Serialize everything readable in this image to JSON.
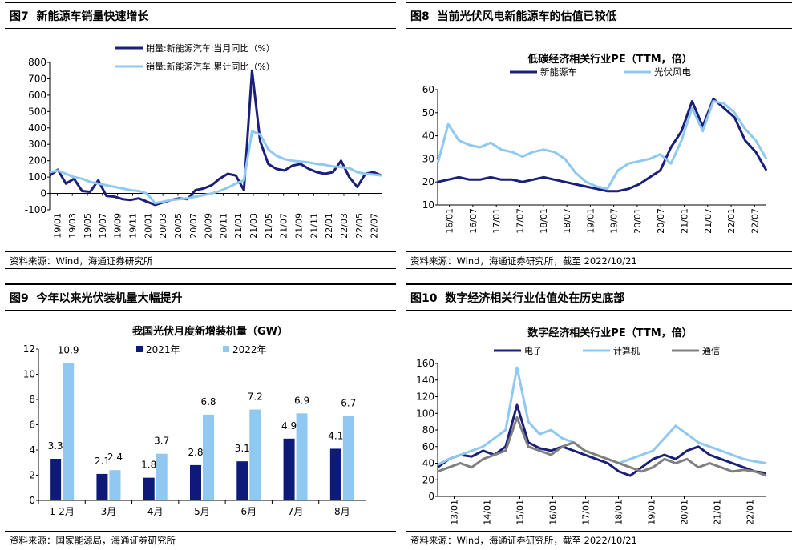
{
  "panels": [
    {
      "id": "p7",
      "fig_label": "图7",
      "title": "新能源车销量快速增长",
      "source": "资料来源：Wind，海通证券研究所"
    },
    {
      "id": "p8",
      "fig_label": "图8",
      "title": "当前光伏风电新能源车的估值已较低",
      "source": "资料来源：Wind，海通证券研究所，截至 2022/10/21"
    },
    {
      "id": "p9",
      "fig_label": "图9",
      "title": "今年以来光伏装机量大幅提升",
      "source": "资料来源：国家能源局，海通证券研究所"
    },
    {
      "id": "p10",
      "fig_label": "图10",
      "title": "数字经济相关行业估值处在历史底部",
      "source": "资料来源：Wind，海通证券研究所，截至 2022/10/21"
    }
  ],
  "chart_data": [
    {
      "id": "p7",
      "type": "line",
      "title": "",
      "ylim": [
        -100,
        800
      ],
      "yticks": [
        -100,
        0,
        100,
        200,
        300,
        400,
        500,
        600,
        700,
        800
      ],
      "x_tick_labels": [
        "19/01",
        "19/03",
        "19/05",
        "19/07",
        "19/09",
        "19/11",
        "20/01",
        "20/03",
        "20/05",
        "20/07",
        "20/09",
        "20/11",
        "21/01",
        "21/03",
        "21/05",
        "21/07",
        "21/09",
        "21/11",
        "22/01",
        "22/03",
        "22/05",
        "22/07"
      ],
      "series": [
        {
          "name": "销量:新能源汽车:当月同比（%）",
          "color": "#1a1f7a",
          "values": [
            110,
            145,
            60,
            90,
            15,
            10,
            80,
            -15,
            -20,
            -35,
            -40,
            -30,
            -50,
            -70,
            -55,
            -40,
            -30,
            -35,
            20,
            30,
            50,
            90,
            120,
            110,
            20,
            750,
            320,
            180,
            150,
            140,
            170,
            180,
            150,
            130,
            120,
            130,
            200,
            100,
            40,
            120,
            130,
            110
          ]
        },
        {
          "name": "销量:新能源汽车:累计同比（%）",
          "color": "#8fc8f0",
          "values": [
            130,
            140,
            120,
            100,
            90,
            70,
            60,
            50,
            40,
            30,
            20,
            15,
            0,
            -60,
            -50,
            -40,
            -35,
            -30,
            -20,
            -10,
            0,
            15,
            35,
            60,
            80,
            380,
            360,
            270,
            230,
            210,
            200,
            195,
            190,
            180,
            175,
            165,
            160,
            155,
            130,
            120,
            115,
            110
          ]
        }
      ]
    },
    {
      "id": "p8",
      "type": "line",
      "title": "低碳经济相关行业PE（TTM，倍）",
      "ylim": [
        10,
        60
      ],
      "yticks": [
        10,
        20,
        30,
        40,
        50,
        60
      ],
      "x_tick_labels": [
        "16/01",
        "16/07",
        "17/01",
        "17/07",
        "18/01",
        "18/07",
        "19/01",
        "19/07",
        "20/01",
        "20/07",
        "21/01",
        "21/07",
        "22/01",
        "22/07"
      ],
      "series": [
        {
          "name": "新能源车",
          "color": "#1a1f7a",
          "values": [
            20,
            21,
            22,
            21,
            21,
            22,
            21,
            21,
            20,
            21,
            22,
            21,
            20,
            19,
            18,
            17,
            16,
            16,
            17,
            19,
            22,
            25,
            35,
            42,
            55,
            44,
            56,
            52,
            48,
            38,
            33,
            25
          ]
        },
        {
          "name": "光伏风电",
          "color": "#8fc8f0",
          "values": [
            28,
            45,
            38,
            36,
            35,
            37,
            34,
            33,
            31,
            33,
            34,
            33,
            30,
            24,
            20,
            18,
            17,
            25,
            28,
            29,
            30,
            32,
            28,
            38,
            52,
            42,
            55,
            54,
            50,
            43,
            38,
            30
          ]
        }
      ]
    },
    {
      "id": "p9",
      "type": "bar",
      "title": "我国光伏月度新增装机量（GW）",
      "ylim": [
        0,
        12
      ],
      "yticks": [
        0,
        2,
        4,
        6,
        8,
        10,
        12
      ],
      "categories": [
        "1-2月",
        "3月",
        "4月",
        "5月",
        "6月",
        "7月",
        "8月"
      ],
      "series": [
        {
          "name": "2021年",
          "color": "#0d1a7a",
          "values": [
            3.3,
            2.1,
            1.8,
            2.8,
            3.1,
            4.9,
            4.1
          ]
        },
        {
          "name": "2022年",
          "color": "#8fc8f0",
          "values": [
            10.9,
            2.4,
            3.7,
            6.8,
            7.2,
            6.9,
            6.7
          ]
        }
      ]
    },
    {
      "id": "p10",
      "type": "line",
      "title": "数字经济相关行业PE（TTM，倍）",
      "ylim": [
        0,
        160
      ],
      "yticks": [
        0,
        20,
        40,
        60,
        80,
        100,
        120,
        140,
        160
      ],
      "x_tick_labels": [
        "13/01",
        "14/01",
        "15/01",
        "16/01",
        "17/01",
        "18/01",
        "19/01",
        "20/01",
        "21/01",
        "22/01"
      ],
      "series": [
        {
          "name": "电子",
          "color": "#1a1f7a",
          "values": [
            35,
            45,
            50,
            48,
            55,
            50,
            60,
            110,
            65,
            58,
            55,
            60,
            55,
            50,
            45,
            40,
            30,
            25,
            35,
            45,
            50,
            45,
            55,
            60,
            50,
            45,
            40,
            35,
            30,
            28
          ]
        },
        {
          "name": "计算机",
          "color": "#8fc8f0",
          "values": [
            38,
            45,
            50,
            55,
            60,
            70,
            80,
            155,
            90,
            75,
            80,
            70,
            65,
            55,
            50,
            45,
            40,
            45,
            50,
            55,
            70,
            85,
            75,
            65,
            60,
            55,
            50,
            45,
            42,
            40
          ]
        },
        {
          "name": "通信",
          "color": "#808080",
          "values": [
            30,
            35,
            40,
            35,
            45,
            50,
            55,
            95,
            60,
            55,
            50,
            60,
            65,
            55,
            50,
            45,
            40,
            35,
            30,
            35,
            45,
            40,
            45,
            35,
            40,
            35,
            30,
            32,
            30,
            25
          ]
        }
      ]
    }
  ]
}
